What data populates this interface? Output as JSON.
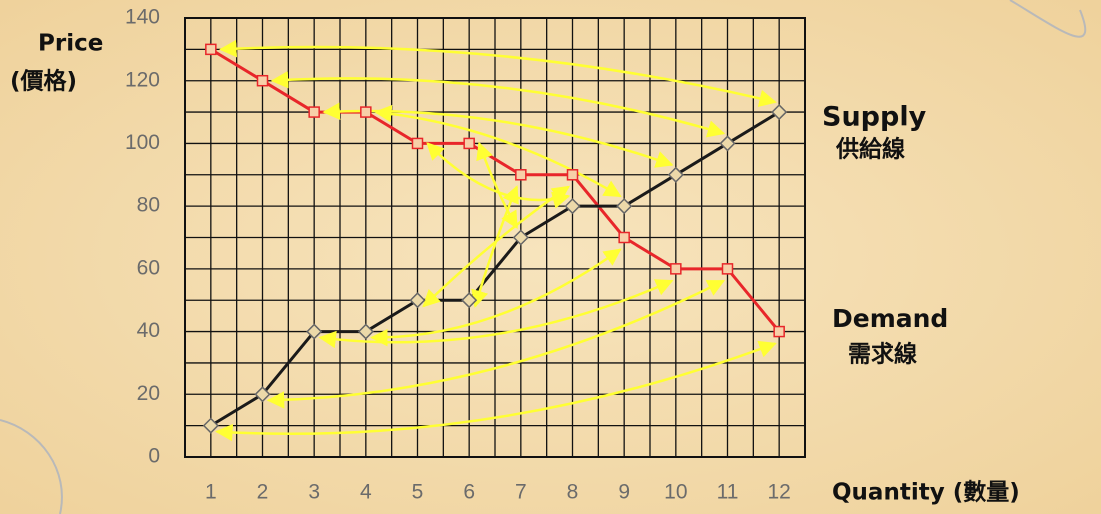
{
  "chart_data": {
    "type": "line",
    "y_label": "Price",
    "y_label_sub": "(價格)",
    "x_label": "Quantity (數量)",
    "categories": [
      "1",
      "2",
      "3",
      "4",
      "5",
      "6",
      "7",
      "8",
      "9",
      "10",
      "11",
      "12"
    ],
    "series": [
      {
        "name": "Demand",
        "name_sub": "需求線",
        "color": "#e8262a",
        "values": [
          130,
          120,
          110,
          110,
          100,
          100,
          90,
          90,
          70,
          60,
          60,
          40
        ]
      },
      {
        "name": "Supply",
        "name_sub": "供給線",
        "color": "#1a1a1a",
        "values": [
          10,
          20,
          40,
          40,
          50,
          50,
          70,
          80,
          80,
          90,
          100,
          110
        ]
      }
    ],
    "ylim": [
      0,
      140
    ],
    "yticks": [
      0,
      20,
      40,
      60,
      80,
      100,
      120,
      140
    ],
    "grid": true
  }
}
